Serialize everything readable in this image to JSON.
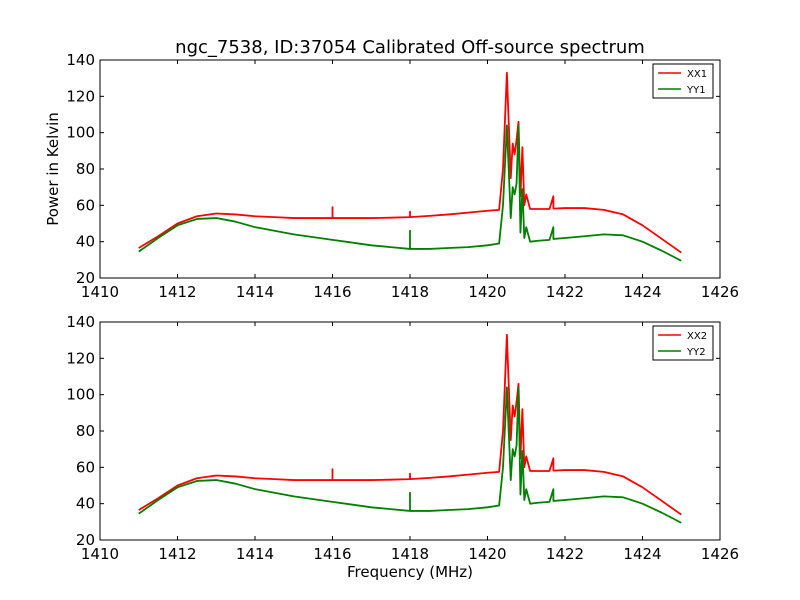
{
  "figure": {
    "title": "ngc_7538, ID:37054 Calibrated Off-source spectrum",
    "xlabel": "Frequency (MHz)",
    "ylabel": "Power in Kelvin"
  },
  "colors": {
    "xx": "#ff0000",
    "yy": "#008000"
  },
  "chart_data": [
    {
      "type": "line",
      "xlim": [
        1410,
        1426
      ],
      "ylim": [
        20,
        140
      ],
      "xticks": [
        1410,
        1412,
        1414,
        1416,
        1418,
        1420,
        1422,
        1424,
        1426
      ],
      "yticks": [
        20,
        40,
        60,
        80,
        100,
        120,
        140
      ],
      "legend_position": "top-right",
      "grid": false,
      "series": [
        {
          "name": "XX1",
          "color": "#ff0000",
          "x": [
            1411.0,
            1411.5,
            1412.0,
            1412.5,
            1413.0,
            1413.5,
            1414.0,
            1414.5,
            1415.0,
            1415.5,
            1416.0,
            1416.0,
            1416.0,
            1416.5,
            1417.0,
            1417.5,
            1418.0,
            1418.0,
            1418.0,
            1418.5,
            1419.0,
            1419.5,
            1420.0,
            1420.3,
            1420.4,
            1420.5,
            1420.6,
            1420.65,
            1420.7,
            1420.75,
            1420.8,
            1420.85,
            1420.9,
            1420.95,
            1421.0,
            1421.1,
            1421.3,
            1421.6,
            1421.7,
            1421.7,
            1421.7,
            1422.0,
            1422.5,
            1423.0,
            1423.5,
            1424.0,
            1424.5,
            1425.0
          ],
          "y": [
            36.5,
            43,
            50,
            54,
            55.5,
            55,
            54,
            53.5,
            53,
            53,
            53,
            59,
            53,
            53,
            53,
            53.2,
            53.5,
            56.5,
            53.5,
            54.2,
            55,
            56,
            57,
            57.5,
            80,
            133,
            75,
            94,
            88,
            96,
            106,
            65,
            92,
            60,
            66,
            58,
            58,
            58,
            65,
            58.2,
            58.2,
            58.5,
            58.5,
            57.5,
            55,
            49,
            41.5,
            34
          ]
        },
        {
          "name": "YY1",
          "color": "#008000",
          "x": [
            1411.0,
            1411.5,
            1412.0,
            1412.5,
            1413.0,
            1413.5,
            1414.0,
            1414.5,
            1415.0,
            1415.5,
            1416.0,
            1416.5,
            1417.0,
            1417.5,
            1418.0,
            1418.0,
            1418.0,
            1418.5,
            1419.0,
            1419.5,
            1420.0,
            1420.3,
            1420.4,
            1420.5,
            1420.6,
            1420.65,
            1420.7,
            1420.75,
            1420.8,
            1420.85,
            1420.9,
            1420.95,
            1421.0,
            1421.1,
            1421.3,
            1421.6,
            1421.7,
            1421.7,
            1421.7,
            1422.0,
            1422.5,
            1423.0,
            1423.5,
            1424.0,
            1424.5,
            1425.0
          ],
          "y": [
            34.5,
            42,
            49,
            52.5,
            53,
            51,
            48,
            46,
            44,
            42.5,
            41,
            39.5,
            38,
            37,
            36,
            46,
            36,
            36,
            36.5,
            37,
            38,
            39,
            60,
            104,
            53,
            70,
            66,
            72,
            104,
            45,
            69,
            42,
            48,
            40,
            40.5,
            41,
            48,
            41.5,
            41.5,
            42,
            43,
            44,
            43.5,
            40,
            35,
            29.5
          ]
        }
      ]
    },
    {
      "type": "line",
      "xlim": [
        1410,
        1426
      ],
      "ylim": [
        20,
        140
      ],
      "xticks": [
        1410,
        1412,
        1414,
        1416,
        1418,
        1420,
        1422,
        1424,
        1426
      ],
      "yticks": [
        20,
        40,
        60,
        80,
        100,
        120,
        140
      ],
      "legend_position": "top-right",
      "grid": false,
      "series": [
        {
          "name": "XX2",
          "color": "#ff0000",
          "x": [
            1411.0,
            1411.5,
            1412.0,
            1412.5,
            1413.0,
            1413.5,
            1414.0,
            1414.5,
            1415.0,
            1415.5,
            1416.0,
            1416.0,
            1416.0,
            1416.5,
            1417.0,
            1417.5,
            1418.0,
            1418.0,
            1418.0,
            1418.5,
            1419.0,
            1419.5,
            1420.0,
            1420.3,
            1420.4,
            1420.5,
            1420.6,
            1420.65,
            1420.7,
            1420.75,
            1420.8,
            1420.85,
            1420.9,
            1420.95,
            1421.0,
            1421.1,
            1421.3,
            1421.6,
            1421.7,
            1421.7,
            1421.7,
            1422.0,
            1422.5,
            1423.0,
            1423.5,
            1424.0,
            1424.5,
            1425.0
          ],
          "y": [
            36.5,
            43,
            50,
            54,
            55.5,
            55,
            54,
            53.5,
            53,
            53,
            53,
            59,
            53,
            53,
            53,
            53.2,
            53.5,
            56.5,
            53.5,
            54.2,
            55,
            56,
            57,
            57.5,
            80,
            133,
            75,
            94,
            88,
            96,
            106,
            65,
            92,
            60,
            66,
            58,
            58,
            58,
            65,
            58.2,
            58.2,
            58.5,
            58.5,
            57.5,
            55,
            49,
            41.5,
            34
          ]
        },
        {
          "name": "YY2",
          "color": "#008000",
          "x": [
            1411.0,
            1411.5,
            1412.0,
            1412.5,
            1413.0,
            1413.5,
            1414.0,
            1414.5,
            1415.0,
            1415.5,
            1416.0,
            1416.5,
            1417.0,
            1417.5,
            1418.0,
            1418.0,
            1418.0,
            1418.5,
            1419.0,
            1419.5,
            1420.0,
            1420.3,
            1420.4,
            1420.5,
            1420.6,
            1420.65,
            1420.7,
            1420.75,
            1420.8,
            1420.85,
            1420.9,
            1420.95,
            1421.0,
            1421.1,
            1421.3,
            1421.6,
            1421.7,
            1421.7,
            1421.7,
            1422.0,
            1422.5,
            1423.0,
            1423.5,
            1424.0,
            1424.5,
            1425.0
          ],
          "y": [
            34.5,
            42,
            49,
            52.5,
            53,
            51,
            48,
            46,
            44,
            42.5,
            41,
            39.5,
            38,
            37,
            36,
            46,
            36,
            36,
            36.5,
            37,
            38,
            39,
            60,
            104,
            53,
            70,
            66,
            72,
            104,
            45,
            69,
            42,
            48,
            40,
            40.5,
            41,
            48,
            41.5,
            41.5,
            42,
            43,
            44,
            43.5,
            40,
            35,
            29.5
          ]
        }
      ]
    }
  ]
}
